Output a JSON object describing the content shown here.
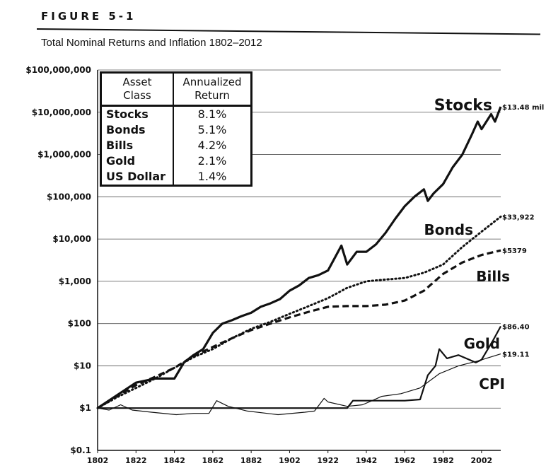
{
  "figure": {
    "label": "FIGURE 5-1",
    "title": "Total Nominal Returns and Inflation 1802–2012"
  },
  "table": {
    "header_col1": "Asset\nClass",
    "header_col1_lines": [
      "Asset",
      "Class"
    ],
    "header_col2_lines": [
      "Annualized",
      "Return"
    ],
    "rows": [
      {
        "asset": "Stocks",
        "return": "8.1%"
      },
      {
        "asset": "Bonds",
        "return": "5.1%"
      },
      {
        "asset": "Bills",
        "return": "4.2%"
      },
      {
        "asset": "Gold",
        "return": "2.1%"
      },
      {
        "asset": "US Dollar",
        "return": "1.4%"
      }
    ]
  },
  "chart_data": {
    "type": "line",
    "title": "Total Nominal Returns and Inflation 1802–2012",
    "xlabel": "",
    "ylabel": "",
    "xlim": [
      1802,
      2012
    ],
    "ylim": [
      0.1,
      100000000
    ],
    "y_scale": "log",
    "grid": true,
    "x_ticks": [
      "1802",
      "1822",
      "1842",
      "1862",
      "1882",
      "1902",
      "1922",
      "1942",
      "1962",
      "1982",
      "2002"
    ],
    "x_tick_values": [
      1802,
      1822,
      1842,
      1862,
      1882,
      1902,
      1922,
      1942,
      1962,
      1982,
      2002
    ],
    "y_ticks": [
      "$0.1",
      "$1",
      "$10",
      "$100",
      "$1,000",
      "$10,000",
      "$100,000",
      "$1,000,000",
      "$10,000,000",
      "$100,000,000"
    ],
    "y_tick_values": [
      0.1,
      1,
      10,
      100,
      1000,
      10000,
      100000,
      1000000,
      10000000,
      100000000
    ],
    "series": [
      {
        "name": "Stocks",
        "end_label": "$13.48 mil",
        "style": "solid-thick",
        "x": [
          1802,
          1812,
          1822,
          1832,
          1842,
          1847,
          1852,
          1857,
          1862,
          1867,
          1872,
          1877,
          1882,
          1887,
          1892,
          1897,
          1902,
          1907,
          1912,
          1917,
          1922,
          1929,
          1932,
          1937,
          1942,
          1947,
          1952,
          1957,
          1962,
          1967,
          1972,
          1974,
          1977,
          1982,
          1987,
          1992,
          1997,
          2000,
          2002,
          2007,
          2009,
          2012
        ],
        "y": [
          1,
          2,
          4,
          5,
          5,
          12,
          18,
          25,
          60,
          100,
          120,
          150,
          180,
          250,
          300,
          380,
          600,
          800,
          1200,
          1400,
          1800,
          7000,
          2500,
          5000,
          5000,
          7500,
          14000,
          30000,
          60000,
          100000,
          150000,
          80000,
          120000,
          200000,
          500000,
          1000000,
          3000000,
          6000000,
          4000000,
          9000000,
          6000000,
          13480000
        ]
      },
      {
        "name": "Bonds",
        "end_label": "$33,922",
        "style": "dotted",
        "x": [
          1802,
          1812,
          1822,
          1832,
          1842,
          1852,
          1862,
          1872,
          1882,
          1892,
          1902,
          1912,
          1922,
          1932,
          1942,
          1952,
          1962,
          1972,
          1982,
          1992,
          2002,
          2012
        ],
        "y": [
          1,
          1.8,
          3,
          5,
          9,
          16,
          25,
          45,
          75,
          110,
          170,
          260,
          400,
          700,
          1000,
          1100,
          1200,
          1600,
          2500,
          6500,
          15000,
          33922
        ]
      },
      {
        "name": "Bills",
        "end_label": "$5379",
        "style": "dashed",
        "x": [
          1802,
          1812,
          1822,
          1832,
          1842,
          1852,
          1862,
          1872,
          1882,
          1892,
          1902,
          1912,
          1922,
          1932,
          1942,
          1952,
          1962,
          1972,
          1982,
          1992,
          2002,
          2012
        ],
        "y": [
          1,
          1.9,
          3.5,
          5.5,
          9,
          17,
          28,
          45,
          70,
          100,
          140,
          190,
          250,
          260,
          260,
          280,
          350,
          600,
          1500,
          2800,
          4200,
          5379
        ]
      },
      {
        "name": "Gold",
        "end_label": "$86.40",
        "style": "solid-medium",
        "x": [
          1802,
          1812,
          1822,
          1832,
          1842,
          1852,
          1862,
          1867,
          1872,
          1882,
          1892,
          1902,
          1912,
          1922,
          1932,
          1935,
          1942,
          1952,
          1962,
          1970,
          1974,
          1978,
          1980,
          1984,
          1990,
          1999,
          2002,
          2008,
          2012
        ],
        "y": [
          1,
          1,
          1,
          1,
          1,
          1,
          1,
          1,
          1,
          1,
          1,
          1,
          1,
          1,
          1,
          1.5,
          1.5,
          1.5,
          1.5,
          1.6,
          6,
          10,
          25,
          15,
          18,
          12,
          14,
          40,
          86.4
        ]
      },
      {
        "name": "CPI",
        "end_label": "$19.11",
        "style": "solid-thin",
        "x": [
          1802,
          1808,
          1814,
          1820,
          1830,
          1843,
          1852,
          1860,
          1864,
          1870,
          1880,
          1896,
          1910,
          1915,
          1920,
          1922,
          1932,
          1940,
          1945,
          1950,
          1960,
          1970,
          1980,
          1990,
          2000,
          2012
        ],
        "y": [
          1,
          0.9,
          1.2,
          0.9,
          0.8,
          0.7,
          0.75,
          0.75,
          1.5,
          1.1,
          0.85,
          0.7,
          0.8,
          0.85,
          1.7,
          1.4,
          1.1,
          1.2,
          1.5,
          1.9,
          2.2,
          3,
          6.5,
          10,
          13,
          19.11
        ]
      }
    ],
    "annotations": [
      "Stocks",
      "Bonds",
      "Bills",
      "Gold",
      "CPI"
    ]
  }
}
